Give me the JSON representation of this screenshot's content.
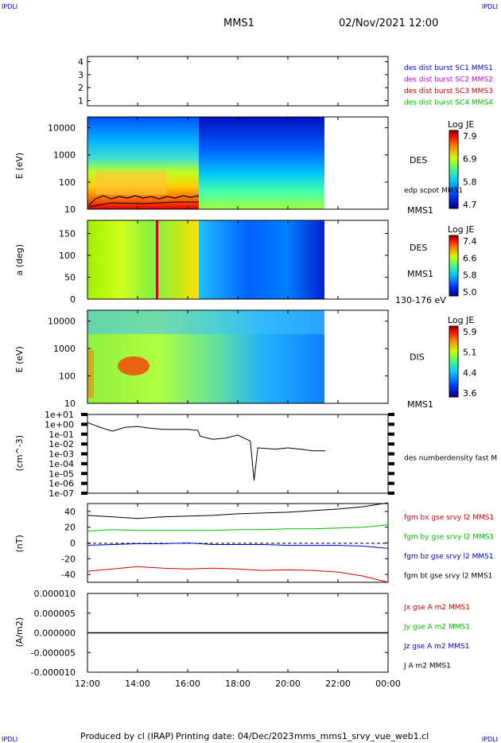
{
  "header": {
    "corner_tl": "IPDLI",
    "corner_tr": "IPDLI",
    "corner_bl": "IPDLI",
    "corner_br": "IPDLI",
    "mission": "MMS1",
    "datetime": "02/Nov/2021 12:00"
  },
  "footer": {
    "producer": "Produced by cl (IRAP)",
    "printing_date": "Printing date: 04/Dec/2023",
    "filename": "mms_mms1_srvy_vue_web1.cl"
  },
  "chart_data": [
    {
      "type": "line",
      "panel": "burst-availability",
      "yticks": [
        "1",
        "2",
        "3",
        "4"
      ],
      "ylim": [
        0.6,
        4.4
      ],
      "legend": [
        {
          "text": "des dist burst SC1 MMS1",
          "color": "#0000cc"
        },
        {
          "text": "des dist burst SC2 MMS2",
          "color": "#cc00cc"
        },
        {
          "text": "des dist burst SC3 MMS3",
          "color": "#cc0000"
        },
        {
          "text": "des dist burst SC4 MMS4",
          "color": "#00bb00"
        }
      ]
    },
    {
      "type": "heatmap",
      "panel": "des-energy-spectrogram",
      "ylabel": "E (eV)",
      "yscale": "log",
      "yticks": [
        "10",
        "100",
        "1000",
        "10000"
      ],
      "label": "DES",
      "label2": "MMS1",
      "overlay_label": "edp scpot MMS1",
      "colorbar": {
        "title": "Log JE",
        "ticks": [
          "7.9",
          "6.9",
          "5.8",
          "4.7"
        ]
      }
    },
    {
      "type": "heatmap",
      "panel": "des-pitch-angle",
      "ylabel": "a (deg)",
      "yticks": [
        "0",
        "50",
        "100",
        "150"
      ],
      "ylim": [
        0,
        180
      ],
      "label": "DES",
      "label2": "MMS1",
      "energy_range": "130-176 eV",
      "colorbar": {
        "title": "Log JE",
        "ticks": [
          "7.4",
          "6.6",
          "5.8",
          "5.0"
        ]
      }
    },
    {
      "type": "heatmap",
      "panel": "dis-energy-spectrogram",
      "ylabel": "E (eV)",
      "yscale": "log",
      "yticks": [
        "10",
        "100",
        "1000",
        "10000"
      ],
      "label": "DIS",
      "label2": "MMS1",
      "colorbar": {
        "title": "Log JE",
        "ticks": [
          "5.9",
          "5.1",
          "4.4",
          "3.6"
        ]
      }
    },
    {
      "type": "line",
      "panel": "density",
      "ylabel": "(cm^-3)",
      "yscale": "log",
      "yticks": [
        "1e+01",
        "1e+00",
        "1e-01",
        "1e-02",
        "1e-03",
        "1e-04",
        "1e-05",
        "1e-06",
        "1e-07"
      ],
      "legend": [
        {
          "text": "des numberdensity fast M",
          "color": "#000000"
        }
      ],
      "series": [
        {
          "name": "des numberdensity fast M",
          "x": [
            12.0,
            12.5,
            13.0,
            13.5,
            14.0,
            14.5,
            15.0,
            15.5,
            16.0,
            16.4,
            16.5,
            17.0,
            17.5,
            18.0,
            18.5,
            18.65,
            18.8,
            19.5,
            20.0,
            20.5,
            21.0,
            21.5
          ],
          "values": [
            1.5,
            0.5,
            0.2,
            0.5,
            0.6,
            0.4,
            0.3,
            0.3,
            0.3,
            0.25,
            0.06,
            0.03,
            0.04,
            0.08,
            0.02,
            2e-06,
            0.004,
            0.003,
            0.004,
            0.003,
            0.002,
            0.002
          ]
        }
      ]
    },
    {
      "type": "line",
      "panel": "magnetic-field",
      "ylabel": "(nT)",
      "yticks": [
        "40",
        "20",
        "0",
        "-20",
        "-40"
      ],
      "ylim": [
        -50,
        50
      ],
      "legend": [
        {
          "text": "fgm bx gse srvy l2 MMS1",
          "color": "#cc0000"
        },
        {
          "text": "fgm by gse srvy l2 MMS1",
          "color": "#00bb00"
        },
        {
          "text": "fgm bz gse srvy l2 MMS1",
          "color": "#0000cc"
        },
        {
          "text": "fgm bt gse srvy l2 MMS1",
          "color": "#000000"
        }
      ],
      "x": [
        12,
        13,
        14,
        15,
        16,
        17,
        18,
        19,
        20,
        21,
        22,
        23,
        24
      ],
      "series": [
        {
          "name": "fgm bx gse srvy l2 MMS1",
          "color": "#cc0000",
          "values": [
            -36,
            -33,
            -30,
            -32,
            -33,
            -32,
            -33,
            -35,
            -34,
            -35,
            -37,
            -42,
            -50
          ]
        },
        {
          "name": "fgm by gse srvy l2 MMS1",
          "color": "#00bb00",
          "values": [
            15,
            17,
            16,
            16,
            16,
            16,
            17,
            17,
            18,
            18,
            19,
            20,
            23
          ]
        },
        {
          "name": "fgm bz gse srvy l2 MMS1",
          "color": "#0000cc",
          "values": [
            -3,
            -2,
            -1,
            -1,
            0,
            -2,
            -2,
            -2,
            -3,
            -3,
            -3,
            -4,
            -7
          ]
        },
        {
          "name": "fgm bt gse srvy l2 MMS1",
          "color": "#000000",
          "values": [
            35,
            33,
            31,
            33,
            34,
            35,
            37,
            38,
            39,
            41,
            43,
            46,
            51
          ]
        }
      ]
    },
    {
      "type": "line",
      "panel": "current-density",
      "ylabel": "(A/m2)",
      "yticks": [
        "0.000010",
        "0.000005",
        "0.000000",
        "-0.000005",
        "-0.000010"
      ],
      "ylim": [
        -1e-05,
        1e-05
      ],
      "legend": [
        {
          "text": "Jx gse A m2 MMS1",
          "color": "#cc0000"
        },
        {
          "text": "Jy gse A m2 MMS1",
          "color": "#00bb00"
        },
        {
          "text": "Jz gse A m2 MMS1",
          "color": "#0000cc"
        },
        {
          "text": "J A m2 MMS1",
          "color": "#000000"
        }
      ],
      "x": [
        12,
        24
      ],
      "series": [
        {
          "name": "J A m2 MMS1",
          "values": [
            0,
            0
          ]
        }
      ]
    }
  ],
  "xaxis": {
    "ticks": [
      "12:00",
      "14:00",
      "16:00",
      "18:00",
      "20:00",
      "22:00",
      "00:00"
    ]
  }
}
